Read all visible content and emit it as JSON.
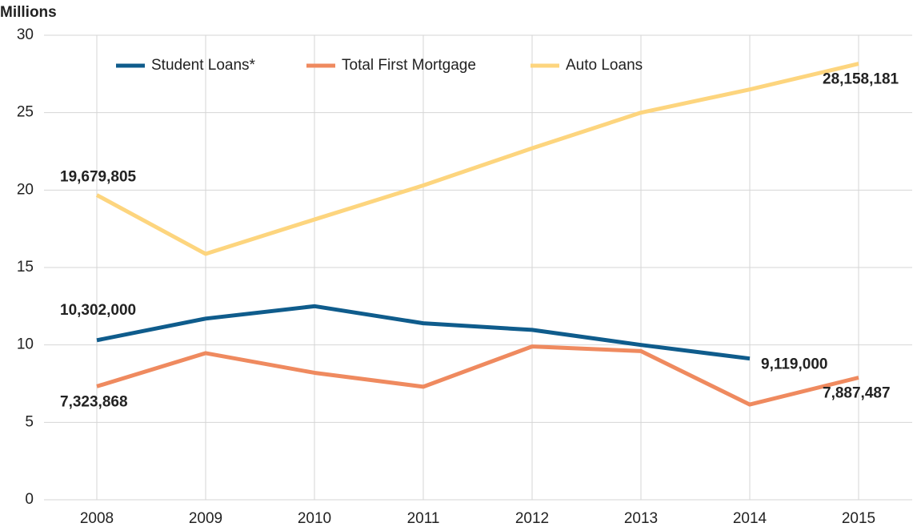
{
  "chart_data": {
    "type": "line",
    "y_axis_label": "Millions",
    "categories": [
      "2008",
      "2009",
      "2010",
      "2011",
      "2012",
      "2013",
      "2014",
      "2015"
    ],
    "ylim": [
      0,
      30
    ],
    "yticks": [
      0,
      5,
      10,
      15,
      20,
      25,
      30
    ],
    "grid": true,
    "legend": "top",
    "series": [
      {
        "name": "Student Loans*",
        "color": "#0f5c8c",
        "values": [
          10.302,
          11.7,
          12.5,
          11.4,
          10.97,
          10.0,
          9.119,
          null
        ],
        "value_labels": [
          "10,302,000",
          null,
          null,
          null,
          null,
          null,
          "9,119,000",
          null
        ]
      },
      {
        "name": "Total First Mortgage",
        "color": "#ef8a5f",
        "values": [
          7.323868,
          9.47,
          8.2,
          7.3,
          9.9,
          9.6,
          6.15,
          7.887487
        ],
        "value_labels": [
          "7,323,868",
          null,
          null,
          null,
          null,
          null,
          null,
          "7,887,487"
        ]
      },
      {
        "name": "Auto Loans",
        "color": "#fdd57e",
        "values": [
          19.679805,
          15.88,
          18.1,
          20.3,
          22.7,
          25.0,
          26.5,
          28.158181
        ],
        "value_labels": [
          "19,679,805",
          null,
          null,
          null,
          null,
          null,
          null,
          "28,158,181"
        ]
      }
    ]
  }
}
